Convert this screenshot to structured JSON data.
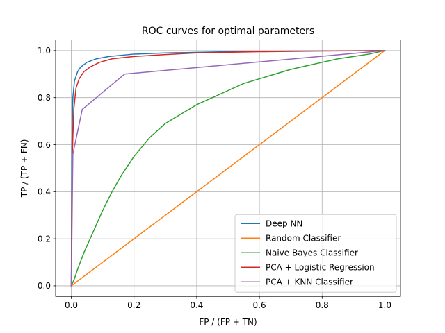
{
  "chart_data": {
    "type": "line",
    "title": "ROC curves for optimal parameters",
    "xlabel": "FP / (FP + TN)",
    "ylabel": "TP / (TP + FN)",
    "xlim": [
      -0.05,
      1.05
    ],
    "ylim": [
      -0.045,
      1.045
    ],
    "xticks": [
      0.0,
      0.2,
      0.4,
      0.6,
      0.8,
      1.0
    ],
    "xtick_labels": [
      "0.0",
      "0.2",
      "0.4",
      "0.6",
      "0.8",
      "1.0"
    ],
    "yticks": [
      0.0,
      0.2,
      0.4,
      0.6,
      0.8,
      1.0
    ],
    "ytick_labels": [
      "0.0",
      "0.2",
      "0.4",
      "0.6",
      "0.8",
      "1.0"
    ],
    "grid": true,
    "legend_position": "bottom-right",
    "series": [
      {
        "name": "Deep NN",
        "color": "#1f77b4",
        "x": [
          0,
          0.002,
          0.005,
          0.01,
          0.02,
          0.03,
          0.05,
          0.08,
          0.12,
          0.2,
          0.3,
          0.5,
          0.7,
          1.0
        ],
        "y": [
          0,
          0.6,
          0.8,
          0.87,
          0.91,
          0.93,
          0.95,
          0.965,
          0.975,
          0.985,
          0.99,
          0.995,
          0.998,
          1.0
        ]
      },
      {
        "name": "Random Classifier",
        "color": "#ff7f0e",
        "x": [
          0,
          1.0
        ],
        "y": [
          0,
          1.0
        ]
      },
      {
        "name": "Naive Bayes Classifier",
        "color": "#2ca02c",
        "x": [
          0,
          0.01,
          0.02,
          0.04,
          0.06,
          0.08,
          0.1,
          0.13,
          0.16,
          0.2,
          0.25,
          0.3,
          0.35,
          0.4,
          0.45,
          0.5,
          0.55,
          0.6,
          0.65,
          0.7,
          0.75,
          0.8,
          0.85,
          0.9,
          0.95,
          1.0
        ],
        "y": [
          0,
          0.03,
          0.07,
          0.14,
          0.2,
          0.26,
          0.32,
          0.4,
          0.47,
          0.55,
          0.63,
          0.69,
          0.73,
          0.77,
          0.8,
          0.83,
          0.86,
          0.88,
          0.9,
          0.92,
          0.935,
          0.95,
          0.965,
          0.975,
          0.985,
          1.0
        ]
      },
      {
        "name": "PCA + Logistic Regression",
        "color": "#d62728",
        "x": [
          0,
          0.003,
          0.008,
          0.015,
          0.025,
          0.04,
          0.06,
          0.09,
          0.13,
          0.2,
          0.3,
          0.4,
          0.6,
          0.8,
          1.0
        ],
        "y": [
          0,
          0.55,
          0.75,
          0.84,
          0.88,
          0.91,
          0.93,
          0.95,
          0.965,
          0.975,
          0.983,
          0.99,
          0.995,
          0.998,
          1.0
        ]
      },
      {
        "name": "PCA + KNN Classifier",
        "color": "#9467bd",
        "x": [
          0,
          0.005,
          0.035,
          0.17,
          1.0
        ],
        "y": [
          0,
          0.56,
          0.75,
          0.9,
          1.0
        ]
      }
    ]
  }
}
